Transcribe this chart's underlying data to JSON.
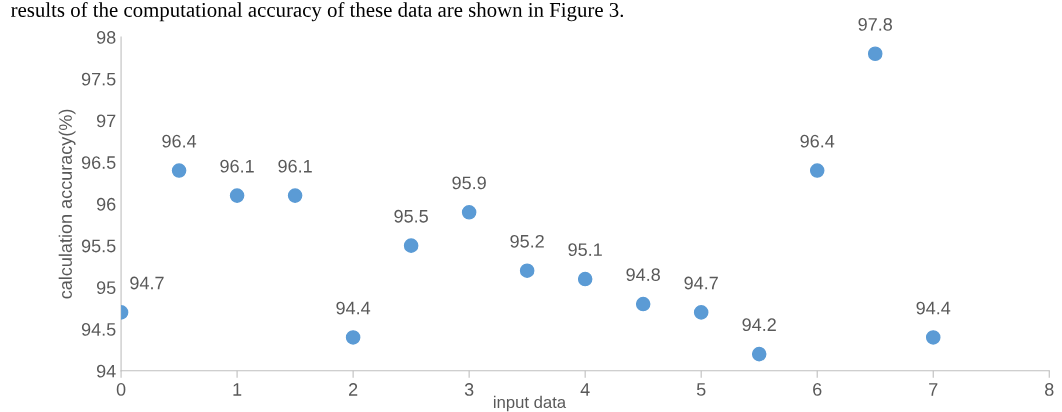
{
  "chart_data": {
    "type": "scatter",
    "annotations": [
      "results of the computational accuracy of these data are shown in Figure 3."
    ],
    "xlabel": "input data",
    "ylabel": "calculation accuracy(%)",
    "x": [
      0,
      0.5,
      1,
      1.5,
      2,
      2.5,
      3,
      3.5,
      4,
      4.5,
      5,
      5.5,
      6,
      6.5,
      7
    ],
    "series": [
      {
        "color": "#5b9bd5",
        "values": [
          94.7,
          96.4,
          96.1,
          96.1,
          94.4,
          95.5,
          95.9,
          95.2,
          95.1,
          94.8,
          94.7,
          94.2,
          96.4,
          97.8,
          94.4
        ]
      }
    ],
    "data_labels": true,
    "marker": "circle",
    "grid": false,
    "xlim": [
      0,
      8
    ],
    "xticks": [
      0,
      1,
      2,
      3,
      4,
      5,
      6,
      7,
      8
    ],
    "ylim": [
      94,
      98
    ],
    "yticks": [
      94,
      94.5,
      95,
      95.5,
      96,
      96.5,
      97,
      97.5,
      98
    ]
  }
}
